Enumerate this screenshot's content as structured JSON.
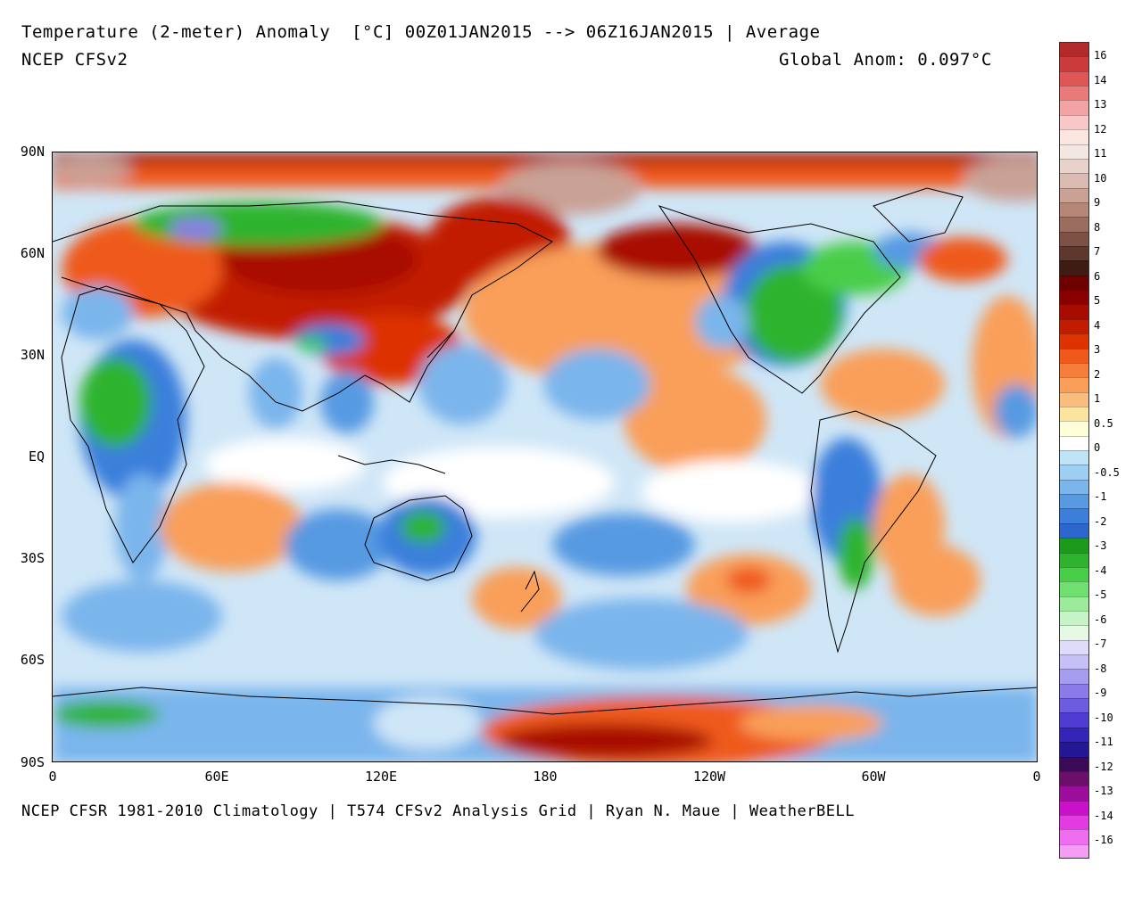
{
  "header": {
    "title": "Temperature (2-meter) Anomaly  [°C] 00Z01JAN2015 --> 06Z16JAN2015 | Average",
    "model": "NCEP CFSv2",
    "global_anom": "Global Anom: 0.097°C"
  },
  "footer": {
    "credit": "NCEP CFSR 1981-2010 Climatology | T574 CFSv2 Analysis Grid | Ryan N. Maue | WeatherBELL"
  },
  "axes": {
    "lat_labels": [
      "90N",
      "60N",
      "30N",
      "EQ",
      "30S",
      "60S",
      "90S"
    ],
    "lon_labels": [
      "0",
      "60E",
      "120E",
      "180",
      "120W",
      "60W",
      "0"
    ]
  },
  "legend": {
    "labels": [
      "16",
      "14",
      "13",
      "12",
      "11",
      "10",
      "9",
      "8",
      "7",
      "6",
      "5",
      "4",
      "3",
      "2",
      "1",
      "0.5",
      "0",
      "-0.5",
      "-1",
      "-2",
      "-3",
      "-4",
      "-5",
      "-6",
      "-7",
      "-8",
      "-9",
      "-10",
      "-11",
      "-12",
      "-13",
      "-14",
      "-16"
    ],
    "colors": [
      "#b22a2a",
      "#cc3b3b",
      "#df5656",
      "#ea7a7a",
      "#f3a3a3",
      "#f8c8c8",
      "#fbe6e0",
      "#f3e7e3",
      "#e8d3cc",
      "#d9bbb2",
      "#c9a195",
      "#b48779",
      "#9b6c60",
      "#7e5145",
      "#5e372d",
      "#3e1c14",
      "#6e0000",
      "#8a0000",
      "#a80c00",
      "#c21c00",
      "#dd3300",
      "#ef5a1a",
      "#f57f3a",
      "#f99f5a",
      "#fbbd7e",
      "#fce39e",
      "#fefed8",
      "#ffffff",
      "#bfe4f7",
      "#9ccff2",
      "#7ab5ec",
      "#579ae2",
      "#3b7fdb",
      "#2d66cc",
      "#1c9a1c",
      "#2fb32f",
      "#48cd48",
      "#6fe06f",
      "#9beb9b",
      "#c6f4c6",
      "#e5f9e5",
      "#dfdcfa",
      "#c5c0f5",
      "#a79df0",
      "#8a7be9",
      "#6e5ce0",
      "#4f3cd3",
      "#3424b8",
      "#241793",
      "#3b0a56",
      "#6b0f6b",
      "#9c0d9c",
      "#c811c8",
      "#e43ae4",
      "#ef6eef",
      "#f59cf5"
    ],
    "scale_colors_note": ""
  },
  "map": {
    "palette": {
      "ocean_warm": "#f99f5a",
      "warm_mid": "#ef5a1a",
      "warm_dark": "#a80c00",
      "very_warm": "#c9a195",
      "neutral": "#ffffff",
      "cool": "#7ab5ec",
      "cool_dark": "#3b7fdb",
      "cold_green": "#2fb32f",
      "light_green": "#6fe06f",
      "purple": "#8a7be9",
      "coast": "#000000"
    }
  }
}
